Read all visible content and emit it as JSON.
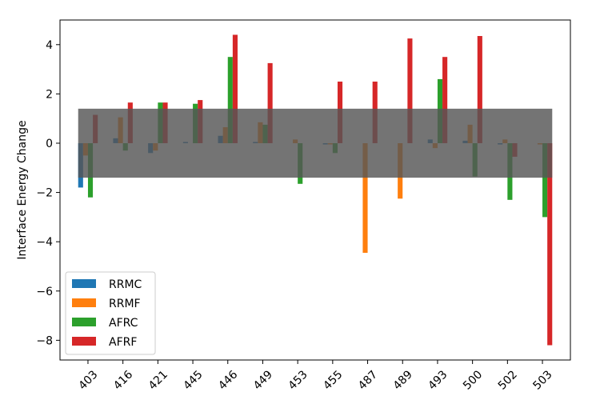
{
  "chart_data": {
    "type": "bar",
    "title": "",
    "xlabel": "",
    "ylabel": "Interface Energy Change",
    "ylim": [
      -8.8,
      5.0
    ],
    "yticks": [
      -8,
      -6,
      -4,
      -2,
      0,
      2,
      4
    ],
    "ytick_labels": [
      "−8",
      "−6",
      "−4",
      "−2",
      "0",
      "2",
      "4"
    ],
    "categories": [
      "403",
      "416",
      "421",
      "445",
      "446",
      "449",
      "453",
      "455",
      "487",
      "489",
      "493",
      "500",
      "502",
      "503"
    ],
    "series": [
      {
        "name": "RRMC",
        "color": "#1f77b4",
        "values": [
          -1.8,
          0.2,
          -0.4,
          0.05,
          0.3,
          0.05,
          0.0,
          -0.05,
          0.0,
          0.0,
          0.15,
          0.1,
          -0.05,
          0.0
        ]
      },
      {
        "name": "RRMF",
        "color": "#ff7f0e",
        "values": [
          -0.5,
          1.05,
          -0.3,
          0.0,
          0.65,
          0.85,
          0.15,
          -0.05,
          -4.45,
          -2.25,
          -0.2,
          0.75,
          0.15,
          -0.05
        ]
      },
      {
        "name": "AFRC",
        "color": "#2ca02c",
        "values": [
          -2.2,
          -0.3,
          1.65,
          1.6,
          3.5,
          0.75,
          -1.65,
          -0.4,
          0.0,
          0.0,
          2.6,
          -1.35,
          -2.3,
          -3.0
        ]
      },
      {
        "name": "AFRF",
        "color": "#d62728",
        "values": [
          1.15,
          1.65,
          1.65,
          1.75,
          4.4,
          3.25,
          0.0,
          2.5,
          2.5,
          4.25,
          3.5,
          4.35,
          -0.55,
          -8.2
        ]
      }
    ],
    "band": {
      "lower": -1.4,
      "upper": 1.4,
      "color": "#555555"
    },
    "legend_position": "lower-left",
    "grid": false
  }
}
